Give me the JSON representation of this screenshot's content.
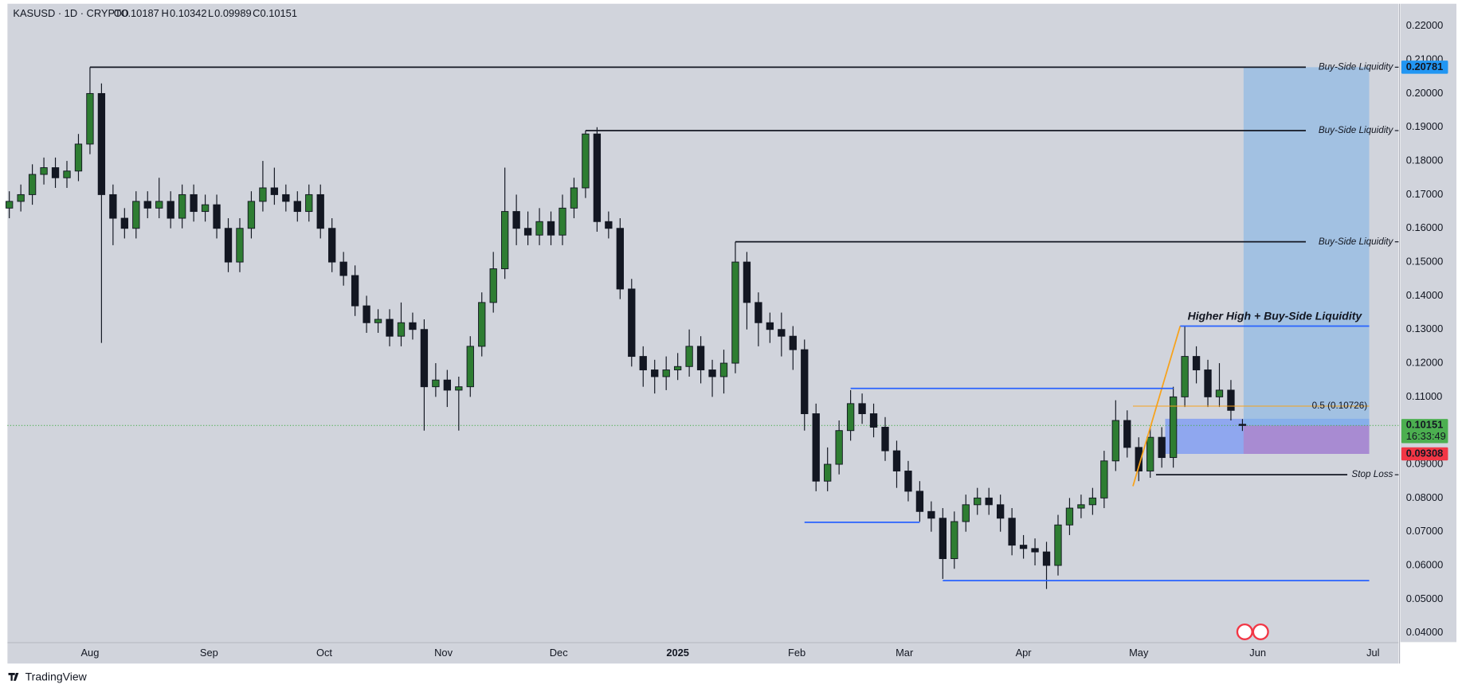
{
  "branding": "TradingView",
  "chart_data": {
    "type": "candlestick",
    "header": {
      "symbol": "KASUSD · 1D · CRYPTO",
      "open_label": "O",
      "high_label": "H",
      "low_label": "L",
      "close_label": "C"
    },
    "open": [
      0.166,
      0.168,
      0.17,
      0.176,
      0.178,
      0.175,
      0.177,
      0.185,
      0.2,
      0.17,
      0.163,
      0.16,
      0.168,
      0.166,
      0.168,
      0.163,
      0.17,
      0.165,
      0.167,
      0.16,
      0.15,
      0.16,
      0.168,
      0.172,
      0.17,
      0.168,
      0.165,
      0.17,
      0.16,
      0.15,
      0.146,
      0.137,
      0.132,
      0.133,
      0.128,
      0.132,
      0.13,
      0.113,
      0.115,
      0.112,
      0.113,
      0.125,
      0.138,
      0.148,
      0.165,
      0.16,
      0.158,
      0.162,
      0.158,
      0.166,
      0.172,
      0.188,
      0.162,
      0.16,
      0.142,
      0.122,
      0.118,
      0.116,
      0.118,
      0.119,
      0.125,
      0.118,
      0.116,
      0.12,
      0.15,
      0.138,
      0.132,
      0.13,
      0.128,
      0.124,
      0.105,
      0.085,
      0.09,
      0.1,
      0.108,
      0.105,
      0.101,
      0.094,
      0.088,
      0.082,
      0.076,
      0.074,
      0.062,
      0.073,
      0.078,
      0.08,
      0.078,
      0.074,
      0.066,
      0.065,
      0.064,
      0.06,
      0.072,
      0.077,
      0.078,
      0.08,
      0.091,
      0.103,
      0.095,
      0.088,
      0.098,
      0.092,
      0.11,
      0.122,
      0.118,
      0.11,
      0.112,
      0.10187
    ],
    "high": [
      0.171,
      0.173,
      0.179,
      0.181,
      0.181,
      0.18,
      0.188,
      0.2078,
      0.203,
      0.173,
      0.166,
      0.171,
      0.171,
      0.175,
      0.171,
      0.173,
      0.173,
      0.17,
      0.17,
      0.163,
      0.163,
      0.171,
      0.18,
      0.178,
      0.173,
      0.171,
      0.173,
      0.173,
      0.163,
      0.153,
      0.149,
      0.14,
      0.136,
      0.136,
      0.138,
      0.135,
      0.133,
      0.12,
      0.118,
      0.116,
      0.128,
      0.141,
      0.153,
      0.178,
      0.17,
      0.165,
      0.166,
      0.165,
      0.17,
      0.175,
      0.189,
      0.19,
      0.165,
      0.163,
      0.145,
      0.125,
      0.121,
      0.122,
      0.123,
      0.13,
      0.128,
      0.121,
      0.124,
      0.156,
      0.153,
      0.141,
      0.135,
      0.135,
      0.131,
      0.127,
      0.108,
      0.095,
      0.103,
      0.112,
      0.111,
      0.108,
      0.104,
      0.097,
      0.091,
      0.085,
      0.079,
      0.077,
      0.076,
      0.081,
      0.083,
      0.083,
      0.081,
      0.077,
      0.069,
      0.068,
      0.067,
      0.075,
      0.08,
      0.081,
      0.083,
      0.094,
      0.109,
      0.106,
      0.098,
      0.101,
      0.101,
      0.113,
      0.131,
      0.125,
      0.121,
      0.12,
      0.115,
      0.10342
    ],
    "low": [
      0.163,
      0.165,
      0.167,
      0.173,
      0.172,
      0.172,
      0.174,
      0.182,
      0.126,
      0.155,
      0.157,
      0.157,
      0.163,
      0.163,
      0.16,
      0.16,
      0.162,
      0.162,
      0.157,
      0.147,
      0.147,
      0.157,
      0.165,
      0.167,
      0.165,
      0.162,
      0.162,
      0.157,
      0.147,
      0.143,
      0.134,
      0.129,
      0.129,
      0.125,
      0.125,
      0.127,
      0.1,
      0.11,
      0.107,
      0.1,
      0.11,
      0.122,
      0.135,
      0.145,
      0.155,
      0.155,
      0.155,
      0.155,
      0.155,
      0.163,
      0.169,
      0.159,
      0.157,
      0.139,
      0.119,
      0.113,
      0.111,
      0.112,
      0.115,
      0.116,
      0.114,
      0.11,
      0.111,
      0.117,
      0.13,
      0.125,
      0.126,
      0.122,
      0.118,
      0.1,
      0.082,
      0.082,
      0.087,
      0.097,
      0.102,
      0.098,
      0.091,
      0.083,
      0.079,
      0.073,
      0.07,
      0.056,
      0.059,
      0.07,
      0.075,
      0.075,
      0.07,
      0.063,
      0.062,
      0.06,
      0.053,
      0.057,
      0.069,
      0.074,
      0.075,
      0.077,
      0.088,
      0.092,
      0.085,
      0.086,
      0.089,
      0.089,
      0.107,
      0.114,
      0.107,
      0.107,
      0.103,
      0.09989
    ],
    "close": [
      0.168,
      0.17,
      0.176,
      0.178,
      0.175,
      0.177,
      0.185,
      0.2,
      0.17,
      0.163,
      0.16,
      0.168,
      0.166,
      0.168,
      0.163,
      0.17,
      0.165,
      0.167,
      0.16,
      0.15,
      0.16,
      0.168,
      0.172,
      0.17,
      0.168,
      0.165,
      0.17,
      0.16,
      0.15,
      0.146,
      0.137,
      0.132,
      0.133,
      0.128,
      0.132,
      0.13,
      0.113,
      0.115,
      0.112,
      0.113,
      0.125,
      0.138,
      0.148,
      0.165,
      0.16,
      0.158,
      0.162,
      0.158,
      0.166,
      0.172,
      0.188,
      0.162,
      0.16,
      0.142,
      0.122,
      0.118,
      0.116,
      0.118,
      0.119,
      0.125,
      0.118,
      0.116,
      0.12,
      0.15,
      0.138,
      0.132,
      0.13,
      0.128,
      0.124,
      0.105,
      0.085,
      0.09,
      0.1,
      0.108,
      0.105,
      0.101,
      0.094,
      0.088,
      0.082,
      0.076,
      0.074,
      0.062,
      0.073,
      0.078,
      0.08,
      0.078,
      0.074,
      0.066,
      0.065,
      0.064,
      0.06,
      0.072,
      0.077,
      0.078,
      0.08,
      0.091,
      0.103,
      0.095,
      0.088,
      0.098,
      0.092,
      0.11,
      0.122,
      0.118,
      0.11,
      0.112,
      0.106,
      0.10151
    ],
    "up_color": "#2e7d32",
    "down_color": "#131722",
    "xlim": [
      -0.16,
      120.55
    ],
    "xticks": [
      {
        "value": 7,
        "label": "Aug"
      },
      {
        "value": 17.33,
        "label": "Sep"
      },
      {
        "value": 27.33,
        "label": "Oct"
      },
      {
        "value": 37.67,
        "label": "Nov"
      },
      {
        "value": 47.67,
        "label": "Dec"
      },
      {
        "value": 58,
        "label": "2025",
        "bold": true
      },
      {
        "value": 68.33,
        "label": "Feb"
      },
      {
        "value": 77.67,
        "label": "Mar"
      },
      {
        "value": 88,
        "label": "Apr"
      },
      {
        "value": 98,
        "label": "May"
      },
      {
        "value": 108.33,
        "label": "Jun"
      },
      {
        "value": 118.33,
        "label": "Jul"
      }
    ],
    "ylim": [
      0.03724,
      0.22663
    ],
    "yticks": [
      {
        "value": 0.04,
        "label": "0.04000"
      },
      {
        "value": 0.05,
        "label": "0.05000"
      },
      {
        "value": 0.06,
        "label": "0.06000"
      },
      {
        "value": 0.07,
        "label": "0.07000"
      },
      {
        "value": 0.08,
        "label": "0.08000"
      },
      {
        "value": 0.09,
        "label": "0.09000"
      },
      {
        "value": 0.1,
        "label": "0.10000"
      },
      {
        "value": 0.11,
        "label": "0.11000"
      },
      {
        "value": 0.12,
        "label": "0.12000"
      },
      {
        "value": 0.13,
        "label": "0.13000"
      },
      {
        "value": 0.14,
        "label": "0.14000"
      },
      {
        "value": 0.15,
        "label": "0.15000"
      },
      {
        "value": 0.16,
        "label": "0.16000"
      },
      {
        "value": 0.17,
        "label": "0.17000"
      },
      {
        "value": 0.18,
        "label": "0.18000"
      },
      {
        "value": 0.19,
        "label": "0.19000"
      },
      {
        "value": 0.2,
        "label": "0.20000"
      },
      {
        "value": 0.21,
        "label": "0.21000"
      },
      {
        "value": 0.22,
        "label": "0.22000"
      }
    ],
    "zones": [
      {
        "start": 100.3,
        "end": 118.0,
        "top": 0.1035,
        "bottom": 0.09308,
        "color": "rgba(90,130,255,0.55)"
      },
      {
        "start": 107.1,
        "end": 118.0,
        "top": 0.20781,
        "bottom": 0.10151,
        "color": "rgba(130,180,230,0.6)"
      },
      {
        "start": 107.1,
        "end": 118.0,
        "top": 0.10151,
        "bottom": 0.09308,
        "color": "rgba(185,120,190,0.6)"
      }
    ],
    "levels": [
      {
        "label": "Buy-Side Liquidity",
        "price": 0.20781,
        "start": 7,
        "end": 112.5,
        "color": "#131722"
      },
      {
        "label": "Buy-Side Liquidity",
        "price": 0.189,
        "start": 50,
        "end": 112.5,
        "color": "#131722"
      },
      {
        "label": "Buy-Side Liquidity",
        "price": 0.156,
        "start": 63,
        "end": 112.5,
        "color": "#131722"
      },
      {
        "label": "Stop Loss",
        "price": 0.0869,
        "start": 99.5,
        "end": 116.1,
        "color": "#131722"
      }
    ],
    "swing_lines": [
      {
        "price": 0.131,
        "start": 101.6,
        "end": 118.0,
        "color": "#2962ff",
        "label": "Higher High + Buy-Side Liquidity"
      },
      {
        "price": 0.1125,
        "start": 73,
        "end": 101,
        "color": "#2962ff"
      },
      {
        "price": 0.0728,
        "start": 69,
        "end": 79,
        "color": "#2962ff"
      },
      {
        "price": 0.0555,
        "start": 81,
        "end": 118.0,
        "color": "#2962ff"
      }
    ],
    "fib": {
      "from": [
        97.5,
        0.0835
      ],
      "to": [
        101.6,
        0.131
      ],
      "level_price": 0.10726,
      "level_label": "0.5 (0.10726)",
      "start": 97.5,
      "end": 118.0,
      "color": "#f7a21b"
    },
    "price_tags": [
      {
        "value": 0.20781,
        "color": "#2196f3"
      },
      {
        "value": 0.10151,
        "color": "#4caf50",
        "countdown": "16:33:49"
      },
      {
        "value": 0.09308,
        "color": "#f23645"
      }
    ]
  }
}
